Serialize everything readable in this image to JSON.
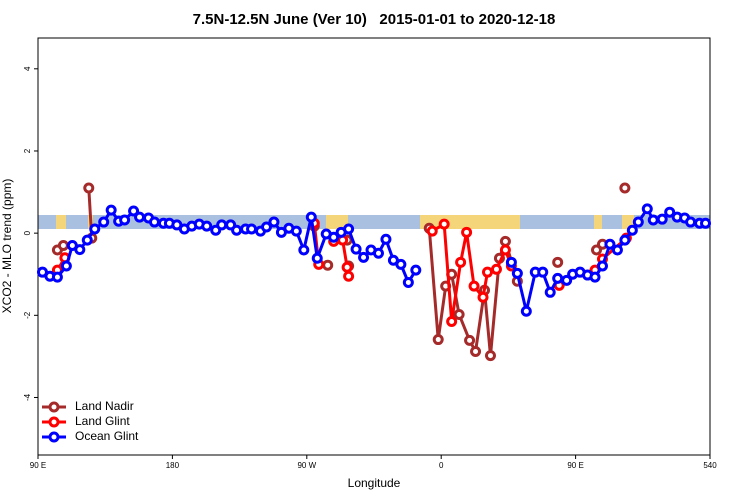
{
  "chart_data": {
    "type": "line",
    "title": "7.5N-12.5N June (Ver 10)   2015-01-01 to 2020-12-18",
    "x_label": "Longitude",
    "y_label": "XCO2 - MLO trend (ppm)",
    "xlim": [
      90,
      540
    ],
    "ylim": [
      -5.4,
      4.75
    ],
    "xticks": [
      {
        "value": 90,
        "label": "90 E"
      },
      180,
      {
        "value": 270,
        "label": "90 W"
      },
      {
        "value": 360,
        "label": "0"
      },
      {
        "value": 450,
        "label": "90 E"
      },
      540
    ],
    "yticks": [
      -4,
      -2,
      0,
      2,
      4
    ],
    "grid": false,
    "legend": "bottom-left",
    "series": [
      {
        "name": "Land Nadir",
        "color": "#a52a2a",
        "x": [
          103,
          107,
          null,
          124,
          126,
          null,
          275,
          null,
          284,
          null,
          297,
          null,
          298,
          null,
          352,
          358,
          363,
          367,
          372,
          379,
          383,
          389,
          393,
          399,
          403,
          411,
          null,
          438,
          null,
          464,
          468,
          null,
          483
        ],
        "values": [
          -0.41,
          -0.3,
          null,
          1.1,
          -0.12,
          null,
          0.17,
          null,
          -0.78,
          null,
          -0.17,
          null,
          -0.8,
          null,
          0.12,
          -2.59,
          -1.29,
          -1.0,
          -1.98,
          -2.61,
          -2.88,
          -1.39,
          -2.98,
          -0.61,
          -0.2,
          -1.17,
          null,
          -0.71,
          null,
          -0.41,
          -0.27,
          null,
          1.1
        ]
      },
      {
        "name": "Land Glint",
        "color": "#ff0000",
        "x": [
          103,
          108,
          null,
          275,
          278,
          null,
          288,
          294,
          297,
          298,
          null,
          354,
          362,
          367,
          373,
          377,
          382,
          388,
          391,
          397,
          403,
          407,
          null,
          439,
          null,
          463,
          468,
          484
        ],
        "values": [
          -0.9,
          -0.6,
          null,
          0.24,
          -0.76,
          null,
          -0.2,
          -0.17,
          -0.83,
          -1.05,
          null,
          0.05,
          0.22,
          -2.15,
          -0.71,
          0.02,
          -1.29,
          -1.56,
          -0.95,
          -0.88,
          -0.41,
          -0.8,
          null,
          -1.27,
          null,
          -0.9,
          -0.63,
          -0.12
        ]
      },
      {
        "name": "Ocean Glint",
        "color": "#0000ff",
        "x": [
          93,
          98,
          103,
          109,
          113,
          118,
          123,
          128,
          134,
          139,
          144,
          148,
          154,
          158,
          164,
          168,
          174,
          178,
          183,
          188,
          193,
          198,
          203,
          209,
          213,
          219,
          223,
          229,
          233,
          239,
          243,
          248,
          253,
          258,
          263,
          268,
          273,
          277,
          283,
          288,
          293,
          298,
          303,
          308,
          313,
          318,
          323,
          328,
          333,
          338,
          343,
          null,
          407,
          411,
          417,
          423,
          428,
          433,
          438,
          444,
          448,
          453,
          458,
          463,
          468,
          473,
          478,
          483,
          488,
          492,
          498,
          502,
          508,
          513,
          518,
          523,
          527,
          533,
          537
        ],
        "values": [
          -0.95,
          -1.05,
          -1.07,
          -0.8,
          -0.3,
          -0.4,
          -0.17,
          0.1,
          0.27,
          0.56,
          0.29,
          0.32,
          0.54,
          0.39,
          0.37,
          0.27,
          0.24,
          0.24,
          0.2,
          0.1,
          0.17,
          0.22,
          0.17,
          0.07,
          0.2,
          0.2,
          0.07,
          0.1,
          0.1,
          0.05,
          0.15,
          0.27,
          0.02,
          0.12,
          0.05,
          -0.41,
          0.39,
          -0.61,
          -0.02,
          -0.1,
          0.02,
          0.1,
          -0.39,
          -0.59,
          -0.41,
          -0.49,
          -0.15,
          -0.66,
          -0.76,
          -1.2,
          -0.9,
          null,
          -0.71,
          -0.98,
          -1.9,
          -0.95,
          -0.95,
          -1.44,
          -1.1,
          -1.15,
          -1.0,
          -0.95,
          -1.02,
          -1.07,
          -0.8,
          -0.27,
          -0.41,
          -0.17,
          0.07,
          0.27,
          0.59,
          0.32,
          0.34,
          0.51,
          0.39,
          0.37,
          0.27,
          0.24,
          0.24
        ]
      }
    ]
  }
}
